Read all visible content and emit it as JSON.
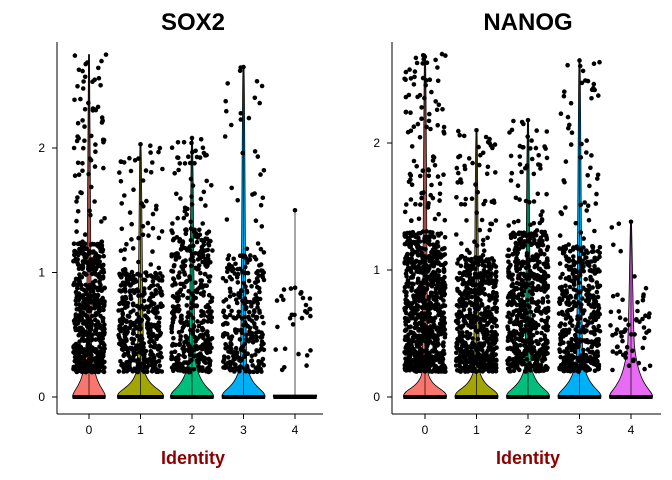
{
  "chart_data": [
    {
      "type": "violin",
      "title": "SOX2",
      "xlabel": "Identity",
      "ylabel": "",
      "categories": [
        "0",
        "1",
        "2",
        "3",
        "4"
      ],
      "y_ticks": [
        "0",
        "1",
        "2"
      ],
      "ylim": [
        -0.12,
        2.85
      ],
      "colors": [
        "#F8766D",
        "#A3A500",
        "#00BF7D",
        "#00B0F6",
        "#E76BF3"
      ],
      "series": [
        {
          "category": "0",
          "max": 2.75,
          "points_max": 2.75,
          "n_points": 620,
          "dense_top": 1.25,
          "body_top": 0.38,
          "body_width": 0.32
        },
        {
          "category": "1",
          "max": 2.03,
          "points_max": 2.03,
          "n_points": 420,
          "dense_top": 1.0,
          "body_top": 0.22,
          "body_width": 0.45
        },
        {
          "category": "2",
          "max": 2.08,
          "points_max": 2.08,
          "n_points": 420,
          "dense_top": 1.35,
          "body_top": 0.3,
          "body_width": 0.42
        },
        {
          "category": "3",
          "max": 2.65,
          "points_max": 2.65,
          "n_points": 300,
          "dense_top": 1.15,
          "body_top": 0.26,
          "body_width": 0.42
        },
        {
          "category": "4",
          "max": 1.5,
          "points_max": 1.5,
          "n_points": 30,
          "dense_top": 0.9,
          "body_top": 0.0,
          "body_width": 0.42
        }
      ]
    },
    {
      "type": "violin",
      "title": "NANOG",
      "xlabel": "Identity",
      "ylabel": "",
      "categories": [
        "0",
        "1",
        "2",
        "3",
        "4"
      ],
      "y_ticks": [
        "0",
        "1",
        "2"
      ],
      "ylim": [
        -0.12,
        2.85
      ],
      "colors": [
        "#F8766D",
        "#A3A500",
        "#00BF7D",
        "#00B0F6",
        "#E76BF3"
      ],
      "series": [
        {
          "category": "0",
          "max": 2.7,
          "points_max": 2.7,
          "n_points": 900,
          "dense_top": 1.3,
          "body_top": 0.18,
          "body_width": 0.42
        },
        {
          "category": "1",
          "max": 2.1,
          "points_max": 2.1,
          "n_points": 650,
          "dense_top": 1.1,
          "body_top": 0.2,
          "body_width": 0.42
        },
        {
          "category": "2",
          "max": 2.18,
          "points_max": 2.18,
          "n_points": 600,
          "dense_top": 1.3,
          "body_top": 0.24,
          "body_width": 0.42
        },
        {
          "category": "3",
          "max": 2.65,
          "points_max": 2.65,
          "n_points": 500,
          "dense_top": 1.2,
          "body_top": 0.3,
          "body_width": 0.42
        },
        {
          "category": "4",
          "max": 1.38,
          "points_max": 1.38,
          "n_points": 60,
          "dense_top": 0.8,
          "body_top": 0.42,
          "body_width": 0.42
        }
      ]
    }
  ]
}
